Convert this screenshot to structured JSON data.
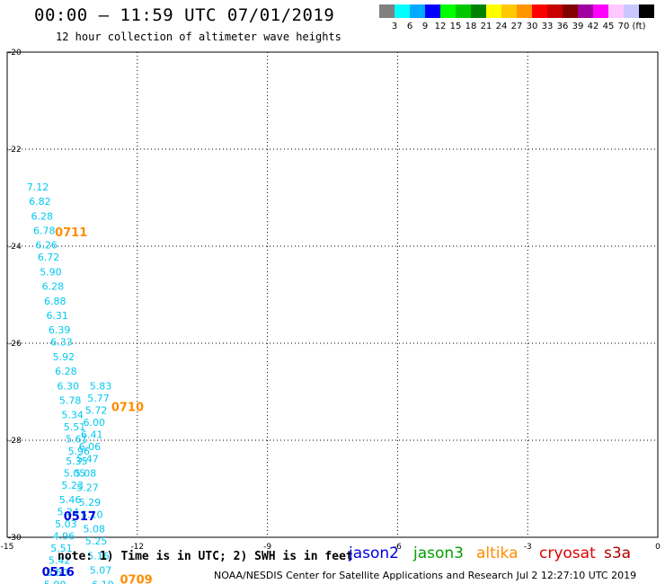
{
  "title": "00:00 – 11:59 UTC 07/01/2019",
  "subtitle": "12 hour collection of altimeter wave heights",
  "colorbar": {
    "colors": [
      "#808080",
      "#00ffff",
      "#00aaff",
      "#0000ff",
      "#00ff00",
      "#00c800",
      "#008200",
      "#ffff00",
      "#ffc800",
      "#ff9600",
      "#ff0000",
      "#c80000",
      "#820000",
      "#a000a0",
      "#ff00ff",
      "#ffc8ff",
      "#c8c8ff",
      "#000000"
    ],
    "labels": [
      "3",
      "6",
      "9",
      "12",
      "15",
      "18",
      "21",
      "24",
      "27",
      "30",
      "33",
      "36",
      "39",
      "42",
      "45",
      "70",
      "(ft)"
    ]
  },
  "note": "note:  1) Time is in UTC; 2) SWH is in feet",
  "credit": "NOAA/NESDIS Center for Satellite Applications and Research   Jul  2 12:27:10 UTC 2019",
  "legend": [
    {
      "name": "jason2",
      "color": "#0000dd"
    },
    {
      "name": "jason3",
      "color": "#00a000"
    },
    {
      "name": "altika",
      "color": "#ff8c00"
    },
    {
      "name": "cryosat",
      "color": "#dd0000"
    },
    {
      "name": "s3a",
      "color": "#b00000"
    }
  ],
  "chart_data": {
    "type": "scatter",
    "title": "00:00 – 11:59 UTC 07/01/2019",
    "subtitle": "12 hour collection of altimeter wave heights",
    "xlim": [
      -15,
      0
    ],
    "ylim": [
      -30,
      -20
    ],
    "x_ticks": [
      "-15",
      "-12",
      "-9",
      "-6",
      "-3",
      "0"
    ],
    "y_ticks": [
      "-20",
      "-22",
      "-24",
      "-26",
      "-28",
      "-30"
    ],
    "grid": true,
    "swh_color": "#00c8f0",
    "swh_points": [
      {
        "x": -14.55,
        "y": -22.85,
        "label": "7.12"
      },
      {
        "x": -14.5,
        "y": -23.15,
        "label": "6.82"
      },
      {
        "x": -14.45,
        "y": -23.45,
        "label": "6.28"
      },
      {
        "x": -14.4,
        "y": -23.75,
        "label": "6.78"
      },
      {
        "x": -14.35,
        "y": -24.05,
        "label": "6.26"
      },
      {
        "x": -14.3,
        "y": -24.3,
        "label": "6.72"
      },
      {
        "x": -14.25,
        "y": -24.6,
        "label": "5.90"
      },
      {
        "x": -14.2,
        "y": -24.9,
        "label": "6.28"
      },
      {
        "x": -14.15,
        "y": -25.2,
        "label": "6.88"
      },
      {
        "x": -14.1,
        "y": -25.5,
        "label": "6.31"
      },
      {
        "x": -14.05,
        "y": -25.8,
        "label": "6.39"
      },
      {
        "x": -14.0,
        "y": -26.05,
        "label": "6.33"
      },
      {
        "x": -13.95,
        "y": -26.35,
        "label": "5.92"
      },
      {
        "x": -13.9,
        "y": -26.65,
        "label": "6.28"
      },
      {
        "x": -13.85,
        "y": -26.95,
        "label": "6.30"
      },
      {
        "x": -13.8,
        "y": -27.25,
        "label": "5.78"
      },
      {
        "x": -13.75,
        "y": -27.55,
        "label": "5.34"
      },
      {
        "x": -13.7,
        "y": -27.8,
        "label": "5.51"
      },
      {
        "x": -13.65,
        "y": -28.05,
        "label": "5.61"
      },
      {
        "x": -13.6,
        "y": -28.3,
        "label": "5.96"
      },
      {
        "x": -13.65,
        "y": -28.5,
        "label": "5.35"
      },
      {
        "x": -13.7,
        "y": -28.75,
        "label": "5.05"
      },
      {
        "x": -13.75,
        "y": -29.0,
        "label": "5.23"
      },
      {
        "x": -13.8,
        "y": -29.3,
        "label": "5.46"
      },
      {
        "x": -13.85,
        "y": -29.55,
        "label": "5.24"
      },
      {
        "x": -13.9,
        "y": -29.8,
        "label": "5.03"
      },
      {
        "x": -13.95,
        "y": -30.05,
        "label": "4.96"
      },
      {
        "x": -14.0,
        "y": -30.3,
        "label": "5.51"
      },
      {
        "x": -14.05,
        "y": -30.55,
        "label": "5.42"
      },
      {
        "x": -14.1,
        "y": -30.8,
        "label": "5.50"
      },
      {
        "x": -14.15,
        "y": -31.05,
        "label": "5.90"
      },
      {
        "x": -13.1,
        "y": -26.95,
        "label": "5.83"
      },
      {
        "x": -13.15,
        "y": -27.2,
        "label": "5.77"
      },
      {
        "x": -13.2,
        "y": -27.45,
        "label": "5.72"
      },
      {
        "x": -13.25,
        "y": -27.7,
        "label": "6.00"
      },
      {
        "x": -13.3,
        "y": -27.95,
        "label": "6.41"
      },
      {
        "x": -13.35,
        "y": -28.2,
        "label": "6.06"
      },
      {
        "x": -13.4,
        "y": -28.45,
        "label": "5.47"
      },
      {
        "x": -13.45,
        "y": -28.75,
        "label": "5.08"
      },
      {
        "x": -13.4,
        "y": -29.05,
        "label": "5.27"
      },
      {
        "x": -13.35,
        "y": -29.35,
        "label": "5.29"
      },
      {
        "x": -13.3,
        "y": -29.6,
        "label": "5.10"
      },
      {
        "x": -13.25,
        "y": -29.9,
        "label": "5.08"
      },
      {
        "x": -13.2,
        "y": -30.15,
        "label": "5.25"
      },
      {
        "x": -13.15,
        "y": -30.45,
        "label": "5.16"
      },
      {
        "x": -13.1,
        "y": -30.75,
        "label": "5.07"
      },
      {
        "x": -13.05,
        "y": -31.05,
        "label": "6.10"
      }
    ],
    "time_labels": [
      {
        "x": -13.9,
        "y": -23.8,
        "label": "0711",
        "color": "#ff8c00"
      },
      {
        "x": -12.6,
        "y": -27.4,
        "label": "0710",
        "color": "#ff8c00"
      },
      {
        "x": -13.7,
        "y": -29.65,
        "label": "0517",
        "color": "#0000dd"
      },
      {
        "x": -14.2,
        "y": -30.8,
        "label": "0516",
        "color": "#0000dd"
      },
      {
        "x": -12.4,
        "y": -30.95,
        "label": "0709",
        "color": "#ff8c00"
      }
    ]
  }
}
